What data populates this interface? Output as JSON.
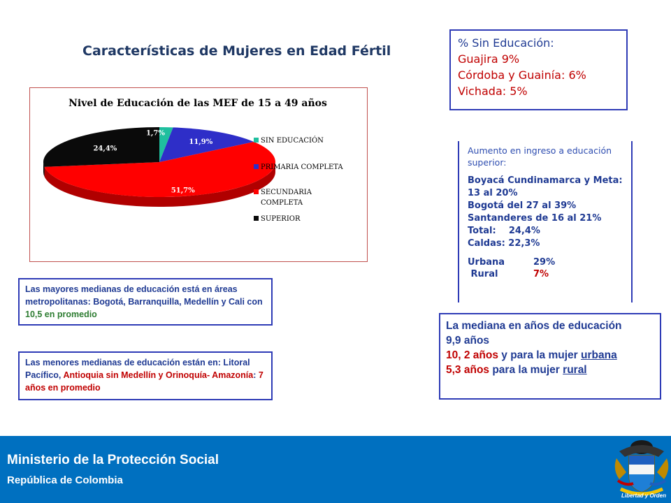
{
  "title": "Características de Mujeres en Edad Fértil",
  "chart_data": {
    "type": "pie",
    "title": "Nivel de Educación de las MEF de 15 a 49 años",
    "categories": [
      "SIN EDUCACIÓN",
      "PRIMARIA COMPLETA",
      "SECUNDARIA COMPLETA",
      "SUPERIOR"
    ],
    "values": [
      1.7,
      11.9,
      51.7,
      24.4
    ],
    "labels": [
      "1,7%",
      "11,9%",
      "51,7%",
      "24,4%"
    ],
    "colors": [
      "#1fbf9f",
      "#2e2ec8",
      "#ff0000",
      "#0a0a0a"
    ],
    "legend": "right",
    "style": "3d"
  },
  "sin_educacion": {
    "heading": "% Sin Educación:",
    "lines": [
      "Guajira 9%",
      "Córdoba y Guainía: 6%",
      "Vichada: 5%"
    ]
  },
  "aumento": {
    "intro": "Aumento en ingreso a educación superior:",
    "lines": [
      "Boyacá Cundinamarca y Meta: 13 al 20%",
      "Bogotá del 27 al 39%",
      "Santanderes de 16 al 21%",
      "Total:    24,4%",
      "Caldas: 22,3%"
    ],
    "urbana_label": "Urbana",
    "urbana_value": "29%",
    "rural_label": " Rural",
    "rural_value": "7%"
  },
  "mayores": {
    "text": "Las mayores medianas de educación está en áreas metropolitanas: Bogotá, Barranquilla, Medellín y Cali con",
    "highlight": "10,5 en promedio"
  },
  "menores": {
    "text1": "Las menores medianas de educación están en: Litoral Pacífico,",
    "red1": "Antioquia sin Medellín y Orinoquía- Amazonía",
    "text2": ":",
    "red2": "7 años en promedio"
  },
  "mediana": {
    "line1": "La mediana en años de educación",
    "line2": "9,9 años",
    "red3": "10, 2 años",
    "text3": "y para la mujer",
    "u3": "urbana",
    "red4": "5,3 años",
    "text4": "para la mujer",
    "u4": "rural"
  },
  "footer": {
    "ministry": "Ministerio de la Protección Social",
    "republic": "República de Colombia",
    "motto": "Libertad y Orden"
  }
}
